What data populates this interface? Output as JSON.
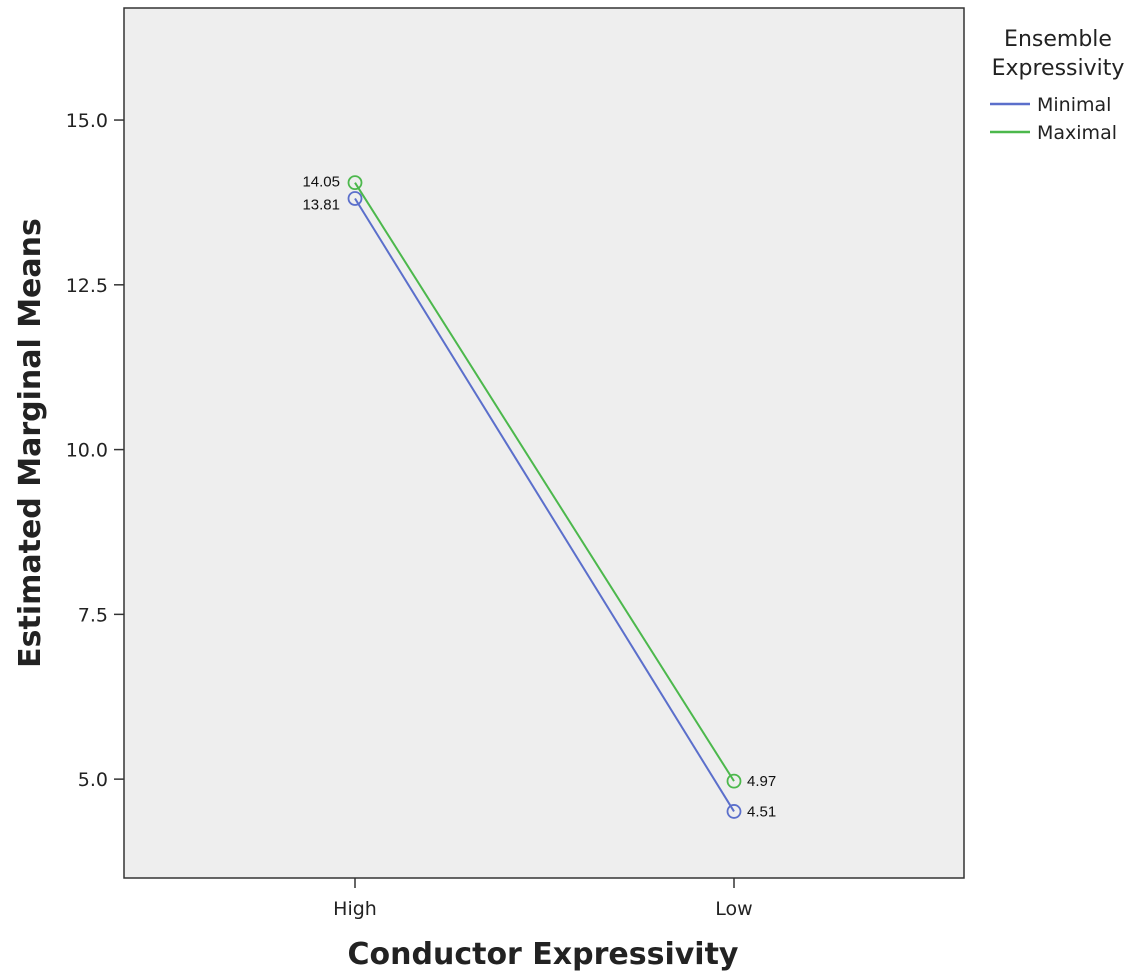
{
  "chart_data": {
    "type": "line",
    "categories": [
      "High",
      "Low"
    ],
    "series": [
      {
        "name": "Minimal",
        "values": [
          13.81,
          4.51
        ],
        "color": "#5B6FCB"
      },
      {
        "name": "Maximal",
        "values": [
          14.05,
          4.97
        ],
        "color": "#4CB84C"
      }
    ],
    "data_labels": {
      "High": [
        "14.05",
        "13.81"
      ],
      "Low": [
        "4.97",
        "4.51"
      ]
    },
    "xlabel": "Conductor Expressivity",
    "ylabel": "Estimated Marginal Means",
    "ylim": [
      3.5,
      16.7
    ],
    "yticks": [
      5.0,
      7.5,
      10.0,
      12.5,
      15.0
    ],
    "ytick_labels": [
      "5.0",
      "7.5",
      "10.0",
      "12.5",
      "15.0"
    ],
    "legend": {
      "title_line1": "Ensemble",
      "title_line2": "Expressivity",
      "placement": "right-top"
    },
    "plot_background": "#EEEEEE",
    "grid": false
  }
}
